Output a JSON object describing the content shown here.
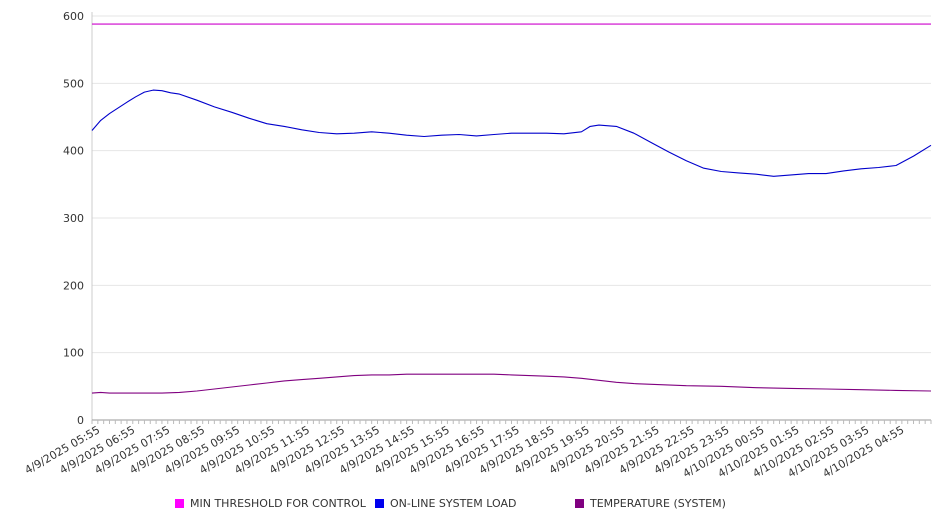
{
  "chart_data": {
    "type": "line",
    "title": "",
    "xlabel": "",
    "ylabel": "",
    "ylim": [
      0,
      600
    ],
    "yticks": [
      0,
      100,
      200,
      300,
      400,
      500,
      600
    ],
    "grid": "horizontal",
    "legend_position": "bottom",
    "x_tick_labels": [
      "4/9/2025 05:55",
      "4/9/2025 06:55",
      "4/9/2025 07:55",
      "4/9/2025 08:55",
      "4/9/2025 09:55",
      "4/9/2025 10:55",
      "4/9/2025 11:55",
      "4/9/2025 12:55",
      "4/9/2025 13:55",
      "4/9/2025 14:55",
      "4/9/2025 15:55",
      "4/9/2025 16:55",
      "4/9/2025 17:55",
      "4/9/2025 18:55",
      "4/9/2025 19:55",
      "4/9/2025 20:55",
      "4/9/2025 21:55",
      "4/9/2025 22:55",
      "4/9/2025 23:55",
      "4/10/2025 00:55",
      "4/10/2025 01:55",
      "4/10/2025 02:55",
      "4/10/2025 03:55",
      "4/10/2025 04:55"
    ],
    "x_time_range": [
      "4/9/2025 05:55",
      "4/10/2025 05:55"
    ],
    "x_unit": "hours",
    "series": [
      {
        "name": "MIN THRESHOLD FOR CONTROL",
        "color": "#cc00cc",
        "x": [
          0,
          24
        ],
        "values": [
          588,
          588
        ]
      },
      {
        "name": "ON-LINE SYSTEM LOAD",
        "color": "#0000cc",
        "x": [
          0,
          0.25,
          0.5,
          1,
          1.25,
          1.5,
          1.75,
          2,
          2.25,
          2.5,
          3,
          3.5,
          4,
          4.5,
          5,
          5.5,
          6,
          6.5,
          7,
          7.5,
          8,
          8.5,
          9,
          9.5,
          10,
          10.5,
          11,
          11.5,
          12,
          12.5,
          13,
          13.5,
          14,
          14.25,
          14.5,
          15,
          15.5,
          16,
          16.5,
          17,
          17.5,
          18,
          18.5,
          19,
          19.5,
          20,
          20.5,
          21,
          21.5,
          22,
          22.5,
          23,
          23.5,
          24
        ],
        "values": [
          430,
          445,
          455,
          472,
          480,
          487,
          490,
          489,
          486,
          484,
          475,
          465,
          457,
          448,
          440,
          436,
          431,
          427,
          425,
          426,
          428,
          426,
          423,
          421,
          423,
          424,
          422,
          424,
          426,
          426,
          426,
          425,
          428,
          436,
          438,
          436,
          426,
          412,
          398,
          385,
          374,
          369,
          367,
          365,
          362,
          364,
          366,
          366,
          370,
          373,
          375,
          378,
          392,
          408
        ]
      },
      {
        "name": "TEMPERATURE (SYSTEM)",
        "color": "#800080",
        "x": [
          0,
          0.25,
          0.5,
          1,
          1.5,
          2,
          2.5,
          3,
          3.5,
          4,
          4.5,
          5,
          5.5,
          6,
          6.5,
          7,
          7.5,
          8,
          8.5,
          9,
          9.5,
          10,
          10.5,
          11,
          11.5,
          12,
          12.5,
          13,
          13.5,
          14,
          14.5,
          15,
          15.5,
          16,
          17,
          18,
          19,
          20,
          21,
          22,
          23,
          24
        ],
        "values": [
          40,
          41,
          40,
          40,
          40,
          40,
          41,
          43,
          46,
          49,
          52,
          55,
          58,
          60,
          62,
          64,
          66,
          67,
          67,
          68,
          68,
          68,
          68,
          68,
          68,
          67,
          66,
          65,
          64,
          62,
          59,
          56,
          54,
          53,
          51,
          50,
          48,
          47,
          46,
          45,
          44,
          43
        ]
      }
    ]
  }
}
